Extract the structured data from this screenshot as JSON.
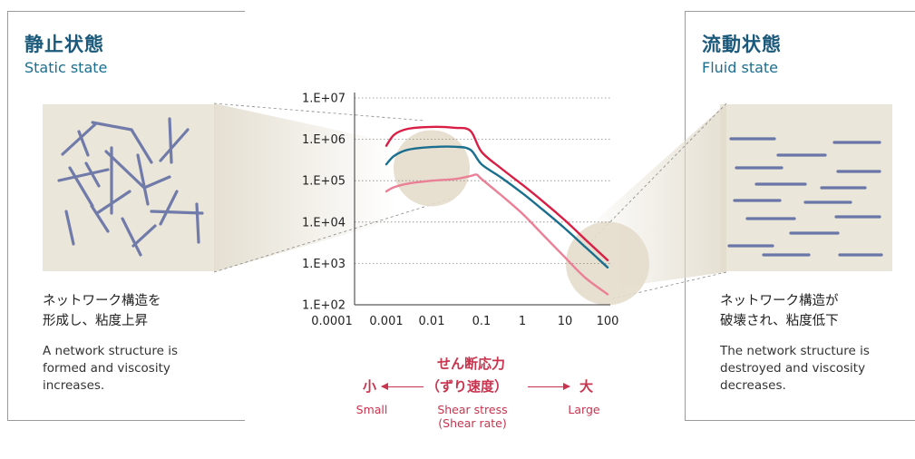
{
  "left_panel": {
    "title_jp": "静止状態",
    "title_en": "Static state",
    "desc_jp_line1": "ネットワーク構造を",
    "desc_jp_line2": "形成し、粘度上昇",
    "desc_en_line1": "A network structure is",
    "desc_en_line2": "formed and viscosity",
    "desc_en_line3": "increases."
  },
  "right_panel": {
    "title_jp": "流動状態",
    "title_en": "Fluid state",
    "desc_jp_line1": "ネットワーク構造が",
    "desc_jp_line2": "破壊され、粘度低下",
    "desc_en_line1": "The network structure is",
    "desc_en_line2": "destroyed and viscosity",
    "desc_en_line3": "decreases."
  },
  "shear_label": {
    "jp_line1": "せん断応力",
    "jp_line2": "（ずり速度）",
    "en_line1": "Shear stress",
    "en_line2": "(Shear rate)",
    "small_jp": "小",
    "small_en": "Small",
    "large_jp": "大",
    "large_en": "Large"
  },
  "colors": {
    "accent_red": "#c9344e",
    "title_blue": "#1c5a7c",
    "series_red": "#d81e45",
    "series_blue": "#1a6e8e",
    "series_pink": "#ea7f95",
    "highlight_circle": "#e4dccb",
    "image_bg": "#ebe6da",
    "fiber": "#6b76a8"
  },
  "chart_data": {
    "type": "line",
    "x_scale": "log",
    "y_scale": "log",
    "x_ticks": [
      "0.0001",
      "0.001",
      "0.01",
      "0.1",
      "1",
      "10",
      "100"
    ],
    "x_tick_values": [
      0.0001,
      0.001,
      0.01,
      0.1,
      1,
      10,
      100
    ],
    "y_ticks": [
      "1.E+02",
      "1.E+03",
      "1.E+04",
      "1.E+05",
      "1.E+06",
      "1.E+07"
    ],
    "y_tick_values": [
      100,
      1000,
      10000,
      100000,
      1000000,
      10000000
    ],
    "xlim": [
      0.0001,
      100
    ],
    "ylim": [
      100,
      10000000
    ],
    "grid": "horizontal dotted",
    "highlights": [
      {
        "x": 0.01,
        "y": 200000
      },
      {
        "x": 100,
        "y": 1000
      }
    ],
    "series": [
      {
        "color": "#d81e45",
        "x": [
          0.001,
          0.0015,
          0.003,
          0.01,
          0.03,
          0.06,
          0.1,
          0.3,
          1,
          3,
          10,
          30,
          100
        ],
        "y": [
          700000,
          1300000,
          1800000,
          2000000,
          1900000,
          1600000,
          500000,
          200000,
          80000,
          32000,
          11000,
          3800,
          1200
        ]
      },
      {
        "color": "#1a6e8e",
        "x": [
          0.001,
          0.0015,
          0.003,
          0.01,
          0.03,
          0.06,
          0.1,
          0.3,
          1,
          3,
          10,
          30,
          100
        ],
        "y": [
          250000,
          400000,
          560000,
          650000,
          660000,
          560000,
          250000,
          120000,
          50000,
          20000,
          7000,
          2500,
          800
        ]
      },
      {
        "color": "#ea7f95",
        "x": [
          0.001,
          0.0015,
          0.003,
          0.01,
          0.03,
          0.06,
          0.08,
          0.1,
          0.3,
          1,
          3,
          10,
          30,
          100
        ],
        "y": [
          55000,
          70000,
          85000,
          100000,
          110000,
          130000,
          140000,
          110000,
          45000,
          16000,
          5000,
          1400,
          450,
          180
        ]
      }
    ]
  }
}
